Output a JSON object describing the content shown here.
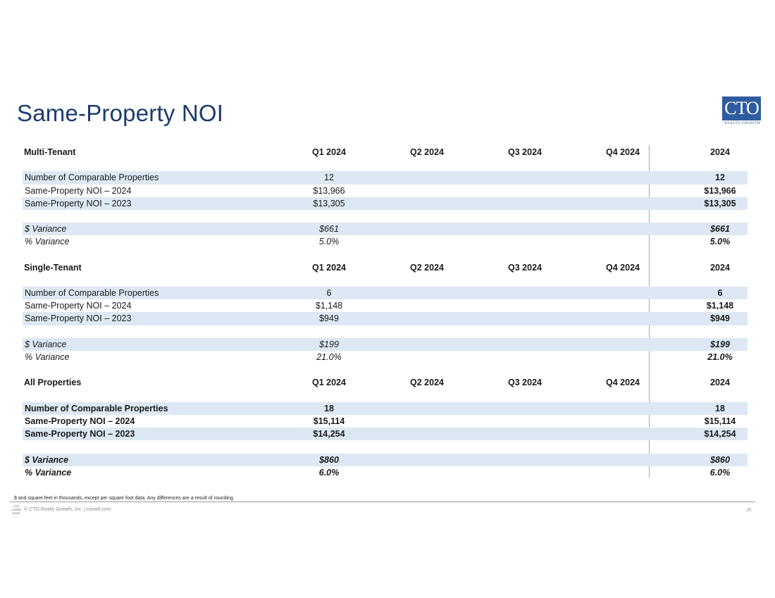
{
  "title": "Same-Property NOI",
  "logo": {
    "main": "CTO",
    "sub": "REALTY GROWTH"
  },
  "sections": [
    {
      "header": "Multi-Tenant",
      "columns": [
        "Q1 2024",
        "Q2 2024",
        "Q3 2024",
        "Q4 2024",
        "2024"
      ],
      "rows": [
        {
          "label": "Number of Comparable Properties",
          "q1": "12",
          "q2": "",
          "q3": "",
          "q4": "",
          "year": "12"
        },
        {
          "label": "Same-Property NOI – 2024",
          "q1": "$13,966",
          "q2": "",
          "q3": "",
          "q4": "",
          "year": "$13,966"
        },
        {
          "label": "Same-Property NOI – 2023",
          "q1": "$13,305",
          "q2": "",
          "q3": "",
          "q4": "",
          "year": "$13,305"
        }
      ],
      "variance": [
        {
          "label": "$ Variance",
          "q1": "$661",
          "q2": "",
          "q3": "",
          "q4": "",
          "year": "$661"
        },
        {
          "label": "% Variance",
          "q1": "5.0%",
          "q2": "",
          "q3": "",
          "q4": "",
          "year": "5.0%"
        }
      ]
    },
    {
      "header": "Single-Tenant",
      "columns": [
        "Q1 2024",
        "Q2 2024",
        "Q3 2024",
        "Q4 2024",
        "2024"
      ],
      "rows": [
        {
          "label": "Number of Comparable Properties",
          "q1": "6",
          "q2": "",
          "q3": "",
          "q4": "",
          "year": "6"
        },
        {
          "label": "Same-Property NOI – 2024",
          "q1": "$1,148",
          "q2": "",
          "q3": "",
          "q4": "",
          "year": "$1,148"
        },
        {
          "label": "Same-Property NOI – 2023",
          "q1": "$949",
          "q2": "",
          "q3": "",
          "q4": "",
          "year": "$949"
        }
      ],
      "variance": [
        {
          "label": "$ Variance",
          "q1": "$199",
          "q2": "",
          "q3": "",
          "q4": "",
          "year": "$199"
        },
        {
          "label": "% Variance",
          "q1": "21.0%",
          "q2": "",
          "q3": "",
          "q4": "",
          "year": "21.0%"
        }
      ]
    },
    {
      "header": "All Properties",
      "columns": [
        "Q1 2024",
        "Q2 2024",
        "Q3 2024",
        "Q4 2024",
        "2024"
      ],
      "rows": [
        {
          "label": "Number of Comparable Properties",
          "q1": "18",
          "q2": "",
          "q3": "",
          "q4": "",
          "year": "18"
        },
        {
          "label": "Same-Property NOI – 2024",
          "q1": "$15,114",
          "q2": "",
          "q3": "",
          "q4": "",
          "year": "$15,114"
        },
        {
          "label": "Same-Property NOI – 2023",
          "q1": "$14,254",
          "q2": "",
          "q3": "",
          "q4": "",
          "year": "$14,254"
        }
      ],
      "variance": [
        {
          "label": "$ Variance",
          "q1": "$860",
          "q2": "",
          "q3": "",
          "q4": "",
          "year": "$860"
        },
        {
          "label": "% Variance",
          "q1": "6.0%",
          "q2": "",
          "q3": "",
          "q4": "",
          "year": "6.0%"
        }
      ]
    }
  ],
  "footer": {
    "footnote": "$ and square feet in thousands, except per square foot data. Any differences are a result of rounding.",
    "copyright": "© CTO Realty Growth, Inc. | ctoreit.com",
    "page_number": "28",
    "small_logo": [
      "CTO",
      "LISTED",
      "NYSE"
    ]
  }
}
